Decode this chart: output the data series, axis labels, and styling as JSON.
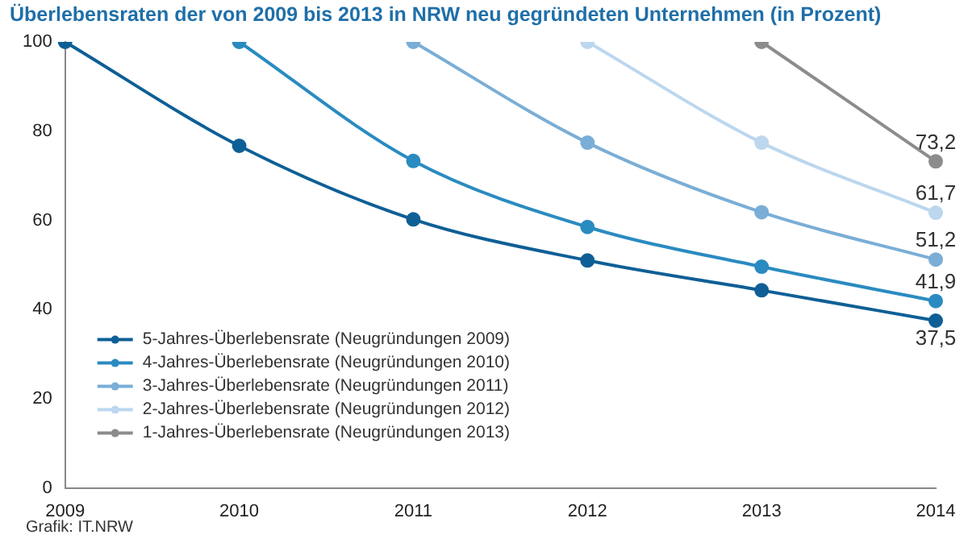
{
  "chart_data": {
    "type": "line",
    "title": "Überlebensraten der von 2009 bis 2013 in NRW neu gegründeten Unternehmen (in Prozent)",
    "categories": [
      "2009",
      "2010",
      "2011",
      "2012",
      "2013",
      "2014"
    ],
    "series": [
      {
        "name": "5-Jahres-Überlebensrate (Neugründungen 2009)",
        "color": "#0e5f96",
        "values": [
          100,
          76.7,
          60.2,
          51.0,
          44.3,
          37.5
        ],
        "value_labels": [
          null,
          null,
          null,
          null,
          null,
          "37,5"
        ]
      },
      {
        "name": "4-Jahres-Überlebensrate (Neugründungen 2010)",
        "color": "#2a8bc0",
        "values": [
          null,
          100,
          73.3,
          58.5,
          49.6,
          41.9
        ],
        "value_labels": [
          null,
          null,
          null,
          null,
          null,
          "41,9"
        ]
      },
      {
        "name": "3-Jahres-Überlebensrate (Neugründungen 2011)",
        "color": "#7aaed6",
        "values": [
          null,
          null,
          100,
          77.4,
          61.8,
          51.2
        ],
        "value_labels": [
          null,
          null,
          null,
          null,
          null,
          "51,2"
        ]
      },
      {
        "name": "2-Jahres-Überlebensrate (Neugründungen 2012)",
        "color": "#bcd7ee",
        "values": [
          null,
          null,
          null,
          100,
          77.4,
          61.7
        ],
        "value_labels": [
          null,
          null,
          null,
          null,
          null,
          "61,7"
        ]
      },
      {
        "name": "1-Jahres-Überlebensrate (Neugründungen 2013)",
        "color": "#8c8c8c",
        "values": [
          null,
          null,
          null,
          null,
          100,
          73.2
        ],
        "value_labels": [
          null,
          null,
          null,
          null,
          null,
          "73,2"
        ]
      }
    ],
    "ylim": [
      0,
      100
    ],
    "yticks": [
      0,
      20,
      40,
      60,
      80,
      100
    ],
    "grid": false,
    "legend": "bottom left",
    "marker": "circle",
    "line_style": "solid",
    "annotations": [
      "Grafik: IT.NRW"
    ]
  }
}
